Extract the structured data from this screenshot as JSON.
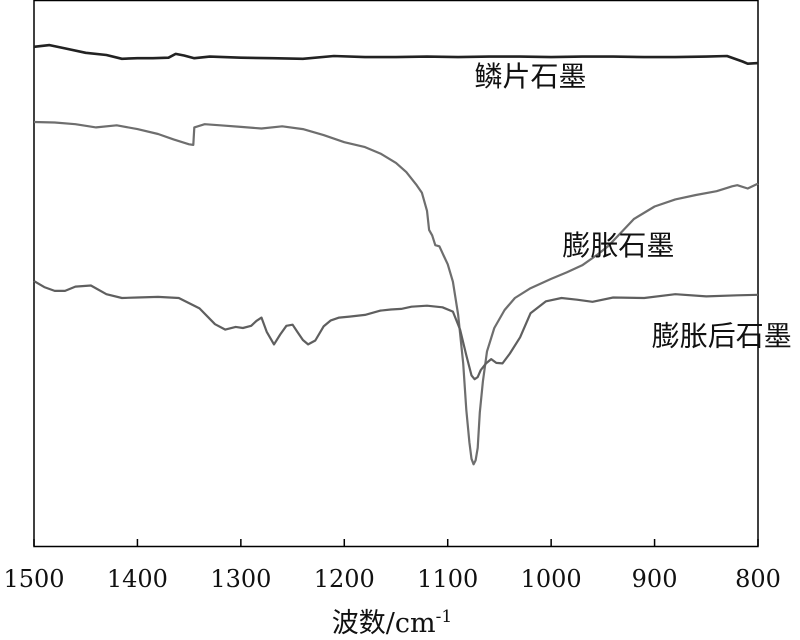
{
  "chart_data": {
    "type": "line",
    "title": "",
    "xlabel": "波数/cm",
    "xlabel_superscript": "-1",
    "ylabel": "",
    "xlim": [
      1500,
      800
    ],
    "x_reversed": true,
    "ylim": [
      0,
      100
    ],
    "y_ticks_shown": false,
    "grid": false,
    "x_ticks": [
      1500,
      1400,
      1300,
      1200,
      1100,
      1000,
      900,
      800
    ],
    "x_tick_labels": [
      "1500",
      "1400",
      "1300",
      "1200",
      "1100",
      "1000",
      "900",
      "800"
    ],
    "colors": {
      "鳞片石墨": "#222222",
      "膨胀石墨": "#6e6e6e",
      "膨胀后石墨": "#5f5f5f",
      "axis": "#000000"
    },
    "series": [
      {
        "name": "鳞片石墨",
        "label_anchor": {
          "x": 1020,
          "y": 84.4
        },
        "x": [
          1500,
          1485,
          1470,
          1450,
          1430,
          1415,
          1400,
          1385,
          1370,
          1363,
          1355,
          1345,
          1330,
          1300,
          1270,
          1240,
          1210,
          1180,
          1150,
          1120,
          1090,
          1060,
          1030,
          1000,
          970,
          940,
          910,
          880,
          850,
          830,
          815,
          810,
          800
        ],
        "y": [
          91.6,
          91.9,
          91.3,
          90.5,
          90.1,
          89.4,
          89.5,
          89.5,
          89.6,
          90.3,
          90.0,
          89.5,
          89.8,
          89.6,
          89.5,
          89.4,
          89.9,
          89.7,
          89.7,
          89.8,
          89.7,
          89.8,
          89.8,
          89.7,
          89.8,
          89.8,
          89.7,
          89.7,
          89.8,
          89.9,
          88.9,
          88.5,
          88.6
        ]
      },
      {
        "name": "膨胀石墨",
        "label_anchor": {
          "x": 935,
          "y": 53.4
        },
        "x": [
          1500,
          1480,
          1460,
          1440,
          1420,
          1400,
          1380,
          1365,
          1350,
          1346,
          1345,
          1335,
          1320,
          1300,
          1280,
          1260,
          1240,
          1220,
          1200,
          1180,
          1165,
          1150,
          1140,
          1130,
          1125,
          1120,
          1118,
          1115,
          1112,
          1108,
          1104,
          1100,
          1095,
          1090,
          1085,
          1082,
          1079,
          1077,
          1075,
          1073,
          1071,
          1069,
          1066,
          1062,
          1055,
          1045,
          1035,
          1020,
          1000,
          985,
          970,
          955,
          945,
          935,
          920,
          900,
          880,
          860,
          840,
          830,
          825,
          820,
          810,
          800
        ],
        "y": [
          77.8,
          77.7,
          77.4,
          76.8,
          77.2,
          76.5,
          75.6,
          74.6,
          73.7,
          73.6,
          76.8,
          77.4,
          77.2,
          76.9,
          76.6,
          77.0,
          76.5,
          75.4,
          74.1,
          73.2,
          72.0,
          70.3,
          68.6,
          66.2,
          64.8,
          61.5,
          58.0,
          57.0,
          55.2,
          55.0,
          53.3,
          51.7,
          48.5,
          42.5,
          33.5,
          25.0,
          19.0,
          16.0,
          15.0,
          15.7,
          18.0,
          24.5,
          30.2,
          35.7,
          40.0,
          43.3,
          45.5,
          47.3,
          49.0,
          50.2,
          51.5,
          53.5,
          55.0,
          57.0,
          60.0,
          62.3,
          63.6,
          64.4,
          65.1,
          65.7,
          66.0,
          66.2,
          65.6,
          66.5
        ]
      },
      {
        "name": "膨胀后石墨",
        "label_anchor": {
          "x": 835,
          "y": 36.8
        },
        "x": [
          1500,
          1490,
          1480,
          1470,
          1460,
          1445,
          1430,
          1415,
          1400,
          1380,
          1360,
          1340,
          1325,
          1315,
          1305,
          1298,
          1290,
          1285,
          1280,
          1275,
          1268,
          1262,
          1256,
          1250,
          1245,
          1240,
          1235,
          1228,
          1220,
          1213,
          1205,
          1195,
          1180,
          1165,
          1155,
          1145,
          1135,
          1120,
          1105,
          1095,
          1088,
          1082,
          1077,
          1074,
          1071,
          1068,
          1063,
          1058,
          1053,
          1047,
          1040,
          1030,
          1020,
          1005,
          990,
          975,
          960,
          940,
          910,
          880,
          850,
          820,
          800
        ],
        "y": [
          48.6,
          47.5,
          46.8,
          46.8,
          47.6,
          47.8,
          46.2,
          45.5,
          45.6,
          45.7,
          45.5,
          43.6,
          40.7,
          39.7,
          40.2,
          40.0,
          40.4,
          41.3,
          41.9,
          39.3,
          37.0,
          38.8,
          40.4,
          40.6,
          39.2,
          37.8,
          37.0,
          37.7,
          40.3,
          41.4,
          41.9,
          42.1,
          42.4,
          43.2,
          43.4,
          43.5,
          43.9,
          44.1,
          43.8,
          43.0,
          39.7,
          35.0,
          31.3,
          30.6,
          31.0,
          32.3,
          33.5,
          34.3,
          33.6,
          33.5,
          35.3,
          38.3,
          42.7,
          44.9,
          45.5,
          45.2,
          44.8,
          45.6,
          45.5,
          46.2,
          45.8,
          46.0,
          46.1
        ]
      }
    ]
  }
}
